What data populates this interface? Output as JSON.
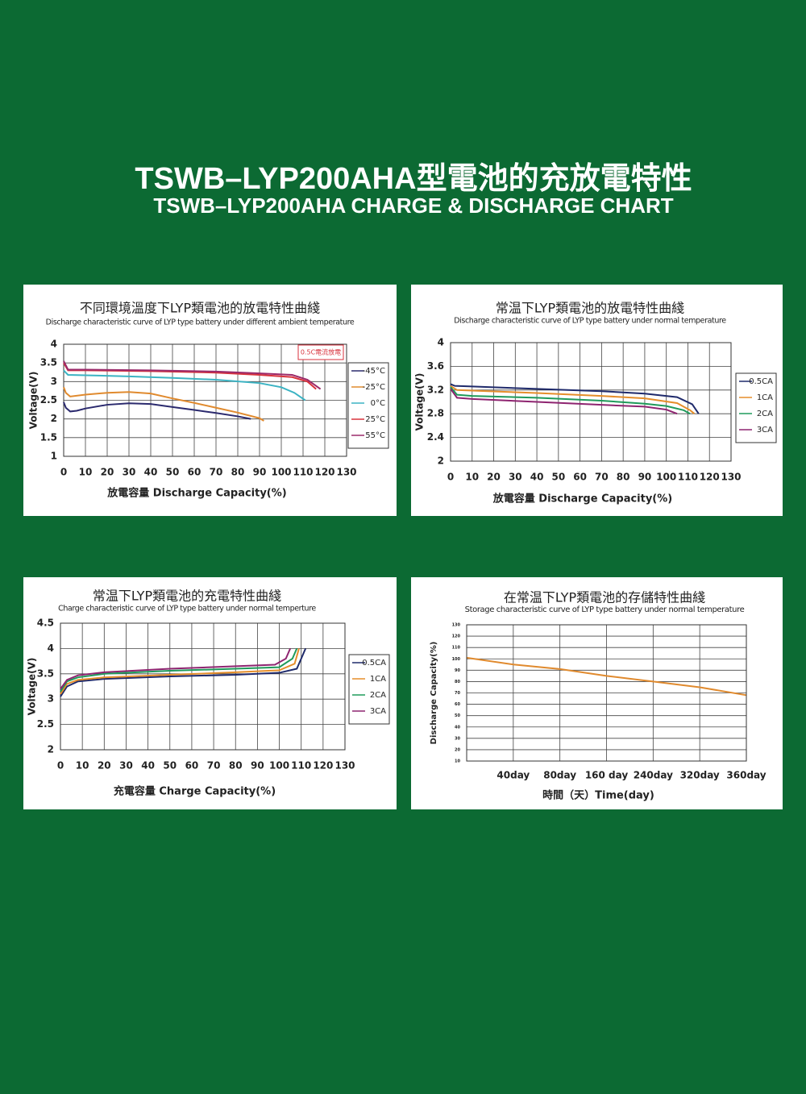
{
  "header": {
    "title": "TSWB–LYP200AHA型電池的充放電特性",
    "subtitle": "TSWB–LYP200AHA CHARGE & DISCHARGE CHART"
  },
  "chart_data": [
    {
      "type": "line",
      "title": "不同環境溫度下LYP類電池的放電特性曲綫",
      "subtitle": "Discharge characteristic curve of LYP type battery under different ambient temperature",
      "x_label": "放電容量 Discharge Capacity(%)",
      "y_label": "Voltage(V)",
      "annotation": "0.5C電流放電",
      "xlim": [
        0,
        130
      ],
      "xticks": [
        0,
        10,
        20,
        30,
        40,
        50,
        60,
        70,
        80,
        90,
        100,
        110,
        120,
        130
      ],
      "ylim": [
        1,
        4
      ],
      "yticks": [
        1,
        1.5,
        2,
        2.5,
        3,
        3.5,
        4
      ],
      "grid": true,
      "legend": "right",
      "series": [
        {
          "name": "-45°C",
          "color": "#2b2a6e",
          "x": [
            0,
            1,
            3,
            6,
            10,
            20,
            30,
            40,
            50,
            60,
            70,
            80,
            86
          ],
          "values": [
            2.45,
            2.3,
            2.2,
            2.22,
            2.28,
            2.38,
            2.42,
            2.4,
            2.32,
            2.24,
            2.16,
            2.07,
            2.0
          ]
        },
        {
          "name": "-25°C",
          "color": "#e08a2e",
          "x": [
            0,
            1,
            3,
            10,
            20,
            30,
            40,
            50,
            60,
            70,
            80,
            90,
            92
          ],
          "values": [
            2.85,
            2.7,
            2.6,
            2.65,
            2.7,
            2.72,
            2.68,
            2.55,
            2.43,
            2.3,
            2.17,
            2.02,
            1.95
          ]
        },
        {
          "name": "0°C",
          "color": "#3bb3c3",
          "x": [
            0,
            2,
            10,
            30,
            50,
            70,
            90,
            100,
            106,
            111
          ],
          "values": [
            3.3,
            3.18,
            3.17,
            3.14,
            3.1,
            3.05,
            2.96,
            2.85,
            2.7,
            2.5
          ]
        },
        {
          "name": "25°C",
          "color": "#d8323c",
          "x": [
            0,
            2,
            10,
            40,
            70,
            90,
            105,
            112,
            116
          ],
          "values": [
            3.5,
            3.3,
            3.3,
            3.28,
            3.24,
            3.18,
            3.12,
            3.0,
            2.8
          ]
        },
        {
          "name": "55°C",
          "color": "#9b2a6a",
          "x": [
            0,
            2,
            10,
            40,
            70,
            90,
            105,
            112,
            118
          ],
          "values": [
            3.55,
            3.32,
            3.32,
            3.3,
            3.27,
            3.22,
            3.18,
            3.05,
            2.8
          ]
        }
      ]
    },
    {
      "type": "line",
      "title": "常温下LYP類電池的放電特性曲綫",
      "subtitle": "Discharge characteristic curve of LYP type battery under normal temperature",
      "x_label": "放電容量 Discharge Capacity(%)",
      "y_label": "Voltage(V)",
      "xlim": [
        0,
        130
      ],
      "xticks": [
        0,
        10,
        20,
        30,
        40,
        50,
        60,
        70,
        80,
        90,
        100,
        110,
        120,
        130
      ],
      "ylim": [
        2,
        4
      ],
      "yticks": [
        2,
        2.4,
        2.8,
        3.2,
        3.6,
        4
      ],
      "grid": true,
      "legend": "right",
      "series": [
        {
          "name": "0.5CA",
          "color": "#1f2a6b",
          "x": [
            0,
            2,
            10,
            40,
            70,
            90,
            105,
            112,
            115
          ],
          "values": [
            3.3,
            3.27,
            3.26,
            3.22,
            3.18,
            3.14,
            3.08,
            2.96,
            2.8
          ]
        },
        {
          "name": "1CA",
          "color": "#e58e2a",
          "x": [
            0,
            3,
            10,
            40,
            70,
            90,
            105,
            111,
            113
          ],
          "values": [
            3.27,
            3.2,
            3.19,
            3.15,
            3.1,
            3.06,
            2.98,
            2.86,
            2.8
          ]
        },
        {
          "name": "2CA",
          "color": "#1f9a5a",
          "x": [
            0,
            3,
            10,
            40,
            70,
            90,
            100,
            108,
            111
          ],
          "values": [
            3.25,
            3.12,
            3.1,
            3.07,
            3.02,
            2.97,
            2.93,
            2.86,
            2.8
          ]
        },
        {
          "name": "3CA",
          "color": "#8e2470",
          "x": [
            0,
            3,
            10,
            40,
            70,
            90,
            100,
            105
          ],
          "values": [
            3.22,
            3.07,
            3.05,
            3.0,
            2.95,
            2.92,
            2.87,
            2.8
          ]
        }
      ]
    },
    {
      "type": "line",
      "title": "常温下LYP類電池的充電特性曲綫",
      "subtitle": "Charge characteristic curve of LYP type battery under normal temperture",
      "x_label": "充電容量 Charge Capacity(%)",
      "y_label": "Voltage(V)",
      "xlim": [
        0,
        130
      ],
      "xticks": [
        0,
        10,
        20,
        30,
        40,
        50,
        60,
        70,
        80,
        90,
        100,
        110,
        120,
        130
      ],
      "ylim": [
        2,
        4.5
      ],
      "yticks": [
        2,
        2.5,
        3,
        3.5,
        4,
        4.5
      ],
      "grid": true,
      "legend": "right",
      "series": [
        {
          "name": "0.5CA",
          "color": "#1f2a6b",
          "x": [
            0,
            3,
            8,
            20,
            50,
            80,
            100,
            108,
            110,
            112
          ],
          "values": [
            3.05,
            3.25,
            3.35,
            3.4,
            3.45,
            3.48,
            3.52,
            3.6,
            3.8,
            4.0
          ]
        },
        {
          "name": "1CA",
          "color": "#e58e2a",
          "x": [
            0,
            3,
            8,
            20,
            50,
            80,
            100,
            107,
            109
          ],
          "values": [
            3.1,
            3.3,
            3.38,
            3.43,
            3.48,
            3.53,
            3.57,
            3.7,
            4.0
          ]
        },
        {
          "name": "2CA",
          "color": "#1f9a5a",
          "x": [
            0,
            3,
            8,
            20,
            50,
            80,
            100,
            106,
            108
          ],
          "values": [
            3.15,
            3.35,
            3.43,
            3.5,
            3.56,
            3.6,
            3.63,
            3.8,
            4.0
          ]
        },
        {
          "name": "3CA",
          "color": "#8e2470",
          "x": [
            0,
            3,
            8,
            20,
            50,
            80,
            98,
            103,
            105
          ],
          "values": [
            3.2,
            3.38,
            3.47,
            3.53,
            3.6,
            3.65,
            3.68,
            3.8,
            4.0
          ]
        }
      ]
    },
    {
      "type": "line",
      "title": "在常温下LYP類電池的存儲特性曲綫",
      "subtitle": "Storage characteristic curve of LYP type battery under normal temperature",
      "x_label": "時間（天）Time(day)",
      "y_label": "Discharge Capacity(%)",
      "categories": [
        null,
        "40day",
        "80day",
        "160 day",
        "240day",
        "320day",
        "360day"
      ],
      "values": [
        101,
        95,
        91,
        85,
        80,
        75,
        68
      ],
      "color": "#e08a2e",
      "ylim": [
        10,
        130
      ],
      "yticks": [
        10,
        20,
        30,
        40,
        50,
        60,
        70,
        80,
        90,
        100,
        110,
        120,
        130
      ],
      "grid": true
    }
  ]
}
